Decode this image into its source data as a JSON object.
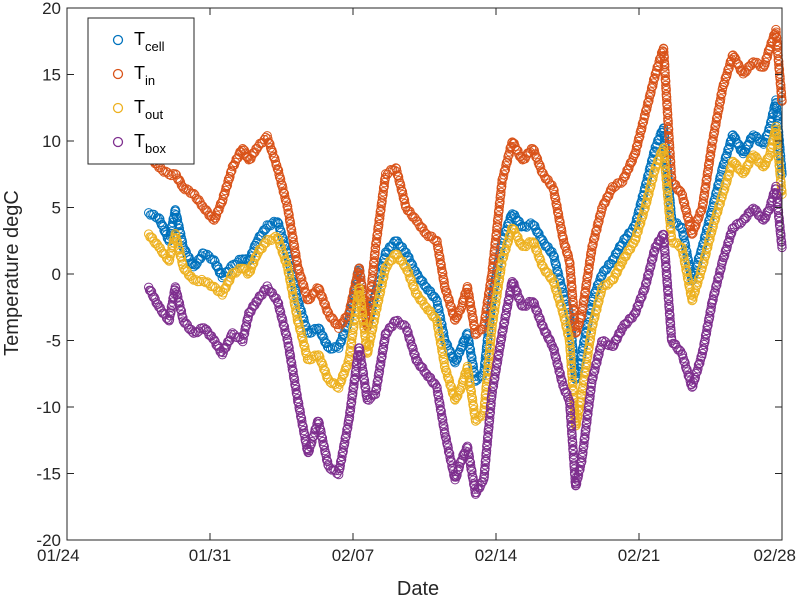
{
  "chart_data": {
    "type": "scatter",
    "title": "",
    "xlabel": "Date",
    "ylabel": "Temperature degC",
    "x_ticks": [
      "01/24",
      "01/31",
      "02/07",
      "02/14",
      "02/21",
      "02/28"
    ],
    "y_ticks": [
      "-20",
      "-15",
      "-10",
      "-5",
      "0",
      "5",
      "10",
      "15",
      "20"
    ],
    "x_range_days": [
      0,
      35
    ],
    "ylim": [
      -20,
      20
    ],
    "grid": false,
    "legend_position": "top-left",
    "marker": "open-circle",
    "x_unit": "day offset from 01/24",
    "series": [
      {
        "id": "cell",
        "legend_main": "T",
        "legend_sub": "cell",
        "color": "#0072BD",
        "points": [
          [
            4.0,
            4.6
          ],
          [
            4.5,
            4.2
          ],
          [
            5.0,
            2.5
          ],
          [
            5.3,
            4.8
          ],
          [
            5.7,
            2.0
          ],
          [
            6.2,
            0.5
          ],
          [
            6.7,
            1.6
          ],
          [
            7.2,
            1.0
          ],
          [
            7.6,
            -0.2
          ],
          [
            8.1,
            0.6
          ],
          [
            8.6,
            1.2
          ],
          [
            8.9,
            0.9
          ],
          [
            9.3,
            2.5
          ],
          [
            9.8,
            3.6
          ],
          [
            10.3,
            4.0
          ],
          [
            10.8,
            1.5
          ],
          [
            11.3,
            -2.0
          ],
          [
            11.8,
            -4.5
          ],
          [
            12.3,
            -4.0
          ],
          [
            12.8,
            -5.6
          ],
          [
            13.3,
            -5.5
          ],
          [
            13.8,
            -3.5
          ],
          [
            14.3,
            0.5
          ],
          [
            14.7,
            -4.0
          ],
          [
            15.1,
            -1.5
          ],
          [
            15.6,
            1.6
          ],
          [
            16.1,
            2.5
          ],
          [
            16.6,
            1.6
          ],
          [
            17.1,
            0.0
          ],
          [
            17.6,
            -1.0
          ],
          [
            18.1,
            -2.0
          ],
          [
            18.5,
            -5.0
          ],
          [
            19.0,
            -6.7
          ],
          [
            19.3,
            -5.5
          ],
          [
            19.6,
            -4.5
          ],
          [
            20.0,
            -8.0
          ],
          [
            20.4,
            -7.5
          ],
          [
            20.8,
            -2.0
          ],
          [
            21.3,
            2.5
          ],
          [
            21.8,
            4.6
          ],
          [
            22.3,
            3.5
          ],
          [
            22.8,
            3.8
          ],
          [
            23.3,
            2.4
          ],
          [
            23.8,
            1.5
          ],
          [
            24.3,
            -1.5
          ],
          [
            24.6,
            -3.0
          ],
          [
            24.9,
            -8.0
          ],
          [
            25.2,
            -6.0
          ],
          [
            25.7,
            -2.0
          ],
          [
            26.2,
            0.0
          ],
          [
            26.7,
            1.0
          ],
          [
            27.2,
            2.4
          ],
          [
            27.8,
            3.6
          ],
          [
            28.3,
            6.5
          ],
          [
            28.8,
            9.5
          ],
          [
            29.2,
            11.0
          ],
          [
            29.6,
            4.0
          ],
          [
            30.1,
            3.5
          ],
          [
            30.6,
            -0.5
          ],
          [
            31.1,
            2.0
          ],
          [
            31.6,
            5.0
          ],
          [
            32.1,
            8.0
          ],
          [
            32.6,
            10.5
          ],
          [
            33.1,
            9.0
          ],
          [
            33.6,
            10.5
          ],
          [
            34.1,
            9.7
          ],
          [
            34.4,
            11.0
          ],
          [
            34.7,
            13.0
          ],
          [
            35.0,
            7.5
          ]
        ]
      },
      {
        "id": "in",
        "legend_main": "T",
        "legend_sub": "in",
        "color": "#D95319",
        "points": [
          [
            4.0,
            9.0
          ],
          [
            4.5,
            8.0
          ],
          [
            5.0,
            7.5
          ],
          [
            5.3,
            7.5
          ],
          [
            5.7,
            6.5
          ],
          [
            6.2,
            6.0
          ],
          [
            6.7,
            5.0
          ],
          [
            7.2,
            4.0
          ],
          [
            7.6,
            5.5
          ],
          [
            8.1,
            8.0
          ],
          [
            8.6,
            9.5
          ],
          [
            8.9,
            8.5
          ],
          [
            9.3,
            9.5
          ],
          [
            9.8,
            10.3
          ],
          [
            10.3,
            8.0
          ],
          [
            10.8,
            5.0
          ],
          [
            11.3,
            0.5
          ],
          [
            11.8,
            -2.0
          ],
          [
            12.3,
            -1.0
          ],
          [
            12.8,
            -3.0
          ],
          [
            13.3,
            -4.0
          ],
          [
            13.8,
            -3.0
          ],
          [
            14.3,
            0.5
          ],
          [
            14.7,
            -4.0
          ],
          [
            15.1,
            2.0
          ],
          [
            15.6,
            7.5
          ],
          [
            16.1,
            8.0
          ],
          [
            16.6,
            5.0
          ],
          [
            17.1,
            4.0
          ],
          [
            17.6,
            3.0
          ],
          [
            18.1,
            2.5
          ],
          [
            18.5,
            -1.0
          ],
          [
            19.0,
            -3.5
          ],
          [
            19.3,
            -2.5
          ],
          [
            19.6,
            -1.0
          ],
          [
            20.0,
            -4.5
          ],
          [
            20.4,
            -4.0
          ],
          [
            20.8,
            0.0
          ],
          [
            21.3,
            7.0
          ],
          [
            21.8,
            10.0
          ],
          [
            22.3,
            8.5
          ],
          [
            22.8,
            9.5
          ],
          [
            23.3,
            7.5
          ],
          [
            23.8,
            6.5
          ],
          [
            24.3,
            2.5
          ],
          [
            24.6,
            1.0
          ],
          [
            24.9,
            -4.5
          ],
          [
            25.2,
            -3.0
          ],
          [
            25.7,
            2.0
          ],
          [
            26.2,
            5.0
          ],
          [
            26.7,
            6.5
          ],
          [
            27.2,
            7.0
          ],
          [
            27.8,
            9.0
          ],
          [
            28.3,
            12.0
          ],
          [
            28.8,
            15.0
          ],
          [
            29.2,
            17.0
          ],
          [
            29.6,
            7.0
          ],
          [
            30.1,
            6.0
          ],
          [
            30.6,
            3.0
          ],
          [
            31.1,
            5.0
          ],
          [
            31.6,
            10.0
          ],
          [
            32.1,
            14.0
          ],
          [
            32.6,
            16.5
          ],
          [
            33.1,
            15.0
          ],
          [
            33.6,
            16.0
          ],
          [
            34.1,
            15.5
          ],
          [
            34.4,
            17.0
          ],
          [
            34.7,
            18.3
          ],
          [
            35.0,
            13.0
          ]
        ]
      },
      {
        "id": "out",
        "legend_main": "T",
        "legend_sub": "out",
        "color": "#EDB120",
        "points": [
          [
            4.0,
            3.0
          ],
          [
            4.5,
            2.0
          ],
          [
            5.0,
            1.0
          ],
          [
            5.3,
            3.0
          ],
          [
            5.7,
            0.5
          ],
          [
            6.2,
            -0.5
          ],
          [
            6.7,
            -0.5
          ],
          [
            7.2,
            -1.0
          ],
          [
            7.6,
            -1.5
          ],
          [
            8.1,
            0.0
          ],
          [
            8.6,
            0.5
          ],
          [
            8.9,
            0.0
          ],
          [
            9.3,
            1.5
          ],
          [
            9.8,
            2.5
          ],
          [
            10.3,
            2.8
          ],
          [
            10.8,
            0.5
          ],
          [
            11.3,
            -3.5
          ],
          [
            11.8,
            -6.5
          ],
          [
            12.3,
            -6.0
          ],
          [
            12.8,
            -8.0
          ],
          [
            13.3,
            -8.5
          ],
          [
            13.8,
            -6.5
          ],
          [
            14.3,
            -1.0
          ],
          [
            14.7,
            -6.0
          ],
          [
            15.1,
            -3.0
          ],
          [
            15.6,
            0.5
          ],
          [
            16.1,
            1.5
          ],
          [
            16.6,
            0.5
          ],
          [
            17.1,
            -1.5
          ],
          [
            17.6,
            -2.5
          ],
          [
            18.1,
            -3.5
          ],
          [
            18.5,
            -7.0
          ],
          [
            19.0,
            -9.5
          ],
          [
            19.3,
            -8.5
          ],
          [
            19.6,
            -7.0
          ],
          [
            20.0,
            -11.0
          ],
          [
            20.4,
            -10.5
          ],
          [
            20.8,
            -4.0
          ],
          [
            21.3,
            1.0
          ],
          [
            21.8,
            3.5
          ],
          [
            22.3,
            2.0
          ],
          [
            22.8,
            2.5
          ],
          [
            23.3,
            0.5
          ],
          [
            23.8,
            -0.5
          ],
          [
            24.3,
            -3.0
          ],
          [
            24.6,
            -5.0
          ],
          [
            24.9,
            -11.5
          ],
          [
            25.2,
            -9.0
          ],
          [
            25.7,
            -4.0
          ],
          [
            26.2,
            -1.0
          ],
          [
            26.7,
            -0.5
          ],
          [
            27.2,
            1.0
          ],
          [
            27.8,
            2.5
          ],
          [
            28.3,
            5.0
          ],
          [
            28.8,
            8.0
          ],
          [
            29.2,
            9.5
          ],
          [
            29.6,
            2.5
          ],
          [
            30.1,
            2.0
          ],
          [
            30.6,
            -2.0
          ],
          [
            31.1,
            0.5
          ],
          [
            31.6,
            3.5
          ],
          [
            32.1,
            6.0
          ],
          [
            32.6,
            8.5
          ],
          [
            33.1,
            7.5
          ],
          [
            33.6,
            9.0
          ],
          [
            34.1,
            8.0
          ],
          [
            34.4,
            9.0
          ],
          [
            34.7,
            11.0
          ],
          [
            35.0,
            6.0
          ]
        ]
      },
      {
        "id": "box",
        "legend_main": "T",
        "legend_sub": "box",
        "color": "#7E2F8E",
        "points": [
          [
            4.0,
            -1.0
          ],
          [
            4.5,
            -2.5
          ],
          [
            5.0,
            -3.5
          ],
          [
            5.3,
            -1.0
          ],
          [
            5.7,
            -3.5
          ],
          [
            6.2,
            -4.5
          ],
          [
            6.7,
            -4.0
          ],
          [
            7.2,
            -5.0
          ],
          [
            7.6,
            -6.0
          ],
          [
            8.1,
            -4.5
          ],
          [
            8.6,
            -5.0
          ],
          [
            8.9,
            -3.0
          ],
          [
            9.3,
            -2.0
          ],
          [
            9.8,
            -1.0
          ],
          [
            10.3,
            -2.0
          ],
          [
            10.8,
            -5.0
          ],
          [
            11.3,
            -9.5
          ],
          [
            11.8,
            -13.5
          ],
          [
            12.3,
            -11.0
          ],
          [
            12.8,
            -14.5
          ],
          [
            13.3,
            -15.0
          ],
          [
            13.8,
            -11.0
          ],
          [
            14.3,
            -5.5
          ],
          [
            14.7,
            -9.5
          ],
          [
            15.1,
            -9.0
          ],
          [
            15.6,
            -4.5
          ],
          [
            16.1,
            -3.5
          ],
          [
            16.6,
            -4.0
          ],
          [
            17.1,
            -6.5
          ],
          [
            17.6,
            -7.5
          ],
          [
            18.1,
            -8.5
          ],
          [
            18.5,
            -12.0
          ],
          [
            19.0,
            -15.5
          ],
          [
            19.3,
            -14.0
          ],
          [
            19.6,
            -13.0
          ],
          [
            20.0,
            -16.5
          ],
          [
            20.4,
            -15.5
          ],
          [
            20.8,
            -9.0
          ],
          [
            21.3,
            -4.5
          ],
          [
            21.8,
            -0.5
          ],
          [
            22.3,
            -2.5
          ],
          [
            22.8,
            -2.0
          ],
          [
            23.3,
            -4.0
          ],
          [
            23.8,
            -5.5
          ],
          [
            24.3,
            -8.5
          ],
          [
            24.6,
            -9.5
          ],
          [
            24.9,
            -16.0
          ],
          [
            25.2,
            -14.0
          ],
          [
            25.7,
            -8.0
          ],
          [
            26.2,
            -5.0
          ],
          [
            26.7,
            -5.5
          ],
          [
            27.2,
            -4.0
          ],
          [
            27.8,
            -3.0
          ],
          [
            28.3,
            -1.0
          ],
          [
            28.8,
            2.0
          ],
          [
            29.2,
            3.0
          ],
          [
            29.6,
            -5.0
          ],
          [
            30.1,
            -6.0
          ],
          [
            30.6,
            -8.5
          ],
          [
            31.1,
            -6.0
          ],
          [
            31.6,
            -2.0
          ],
          [
            32.1,
            1.0
          ],
          [
            32.6,
            3.5
          ],
          [
            33.1,
            4.0
          ],
          [
            33.6,
            5.0
          ],
          [
            34.1,
            4.0
          ],
          [
            34.4,
            5.0
          ],
          [
            34.7,
            6.5
          ],
          [
            35.0,
            2.0
          ]
        ]
      }
    ]
  }
}
